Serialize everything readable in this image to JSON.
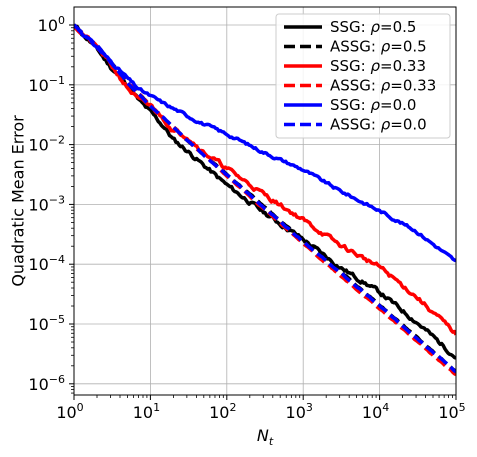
{
  "chart_data": {
    "type": "line",
    "title": "",
    "xlabel": "N",
    "xlabel_sub": "t",
    "ylabel": "Quadratic Mean Error",
    "xscale": "log",
    "yscale": "log",
    "xlim": [
      1,
      100000
    ],
    "ylim": [
      6.5e-07,
      2.0
    ],
    "grid": true,
    "legend_position": "top-right",
    "x_ticks": [
      {
        "value": 1,
        "base": "10",
        "exp": "0"
      },
      {
        "value": 10,
        "base": "10",
        "exp": "1"
      },
      {
        "value": 100,
        "base": "10",
        "exp": "2"
      },
      {
        "value": 1000,
        "base": "10",
        "exp": "3"
      },
      {
        "value": 10000,
        "base": "10",
        "exp": "4"
      },
      {
        "value": 100000,
        "base": "10",
        "exp": "5"
      }
    ],
    "y_ticks": [
      {
        "value": 1e-06,
        "base": "10",
        "exp": "−6"
      },
      {
        "value": 1e-05,
        "base": "10",
        "exp": "−5"
      },
      {
        "value": 0.0001,
        "base": "10",
        "exp": "−4"
      },
      {
        "value": 0.001,
        "base": "10",
        "exp": "−3"
      },
      {
        "value": 0.01,
        "base": "10",
        "exp": "−2"
      },
      {
        "value": 0.1,
        "base": "10",
        "exp": "−1"
      },
      {
        "value": 1,
        "base": "10",
        "exp": "0"
      }
    ],
    "series": [
      {
        "name": "SSG: ρ=0.5",
        "label_prefix": "SSG: ",
        "rho": "0.5",
        "color": "#000000",
        "dash": "solid",
        "noise": 0.06,
        "seed": 11,
        "x": [
          1,
          2,
          3,
          5,
          7,
          10,
          15,
          20,
          30,
          50,
          100,
          300,
          1000,
          3000,
          10000,
          30000,
          100000
        ],
        "y": [
          1.0,
          0.4,
          0.2,
          0.1,
          0.055,
          0.035,
          0.02,
          0.012,
          0.008,
          0.0045,
          0.0021,
          0.00075,
          0.00026,
          9e-05,
          3.4e-05,
          1.1e-05,
          2.8e-06
        ]
      },
      {
        "name": "ASSG: ρ=0.5",
        "label_prefix": "ASSG: ",
        "rho": "0.5",
        "color": "#000000",
        "dash": "dashed",
        "noise": 0.015,
        "seed": 12,
        "x": [
          1,
          2,
          3,
          5,
          10,
          30,
          100,
          1000,
          10000,
          100000
        ],
        "y": [
          1.0,
          0.45,
          0.24,
          0.11,
          0.045,
          0.012,
          0.0032,
          0.00025,
          2.1e-05,
          1.6e-06
        ]
      },
      {
        "name": "SSG: ρ=0.33",
        "label_prefix": "SSG: ",
        "rho": "0.33",
        "color": "#ff0000",
        "dash": "solid",
        "noise": 0.06,
        "seed": 21,
        "x": [
          1,
          2,
          3,
          5,
          7,
          10,
          15,
          20,
          30,
          50,
          100,
          300,
          1000,
          3000,
          10000,
          30000,
          100000
        ],
        "y": [
          1.0,
          0.42,
          0.22,
          0.09,
          0.055,
          0.045,
          0.027,
          0.017,
          0.014,
          0.0075,
          0.004,
          0.0015,
          0.00055,
          0.00021,
          9e-05,
          2.9e-05,
          6.8e-06
        ]
      },
      {
        "name": "ASSG: ρ=0.33",
        "label_prefix": "ASSG: ",
        "rho": "0.33",
        "color": "#ff0000",
        "dash": "dashed",
        "noise": 0.015,
        "seed": 22,
        "x": [
          1,
          2,
          3,
          5,
          10,
          30,
          100,
          1000,
          10000,
          100000
        ],
        "y": [
          1.0,
          0.45,
          0.24,
          0.11,
          0.045,
          0.012,
          0.003,
          0.00022,
          1.8e-05,
          1.4e-06
        ]
      },
      {
        "name": "SSG: ρ=0.0",
        "label_prefix": "SSG: ",
        "rho": "0.0",
        "color": "#0000ff",
        "dash": "solid",
        "noise": 0.04,
        "seed": 31,
        "x": [
          1,
          2,
          3,
          5,
          7,
          10,
          20,
          50,
          100,
          300,
          1000,
          3000,
          10000,
          30000,
          100000
        ],
        "y": [
          1.0,
          0.42,
          0.25,
          0.13,
          0.085,
          0.065,
          0.04,
          0.022,
          0.015,
          0.0075,
          0.0038,
          0.0017,
          0.00078,
          0.00036,
          0.00011
        ]
      },
      {
        "name": "ASSG: ρ=0.0",
        "label_prefix": "ASSG: ",
        "rho": "0.0",
        "color": "#0000ff",
        "dash": "dashed",
        "noise": 0.015,
        "seed": 32,
        "x": [
          1,
          2,
          3,
          5,
          10,
          30,
          100,
          1000,
          10000,
          100000
        ],
        "y": [
          1.0,
          0.45,
          0.24,
          0.11,
          0.045,
          0.012,
          0.0031,
          0.00024,
          2e-05,
          1.6e-06
        ]
      }
    ]
  }
}
